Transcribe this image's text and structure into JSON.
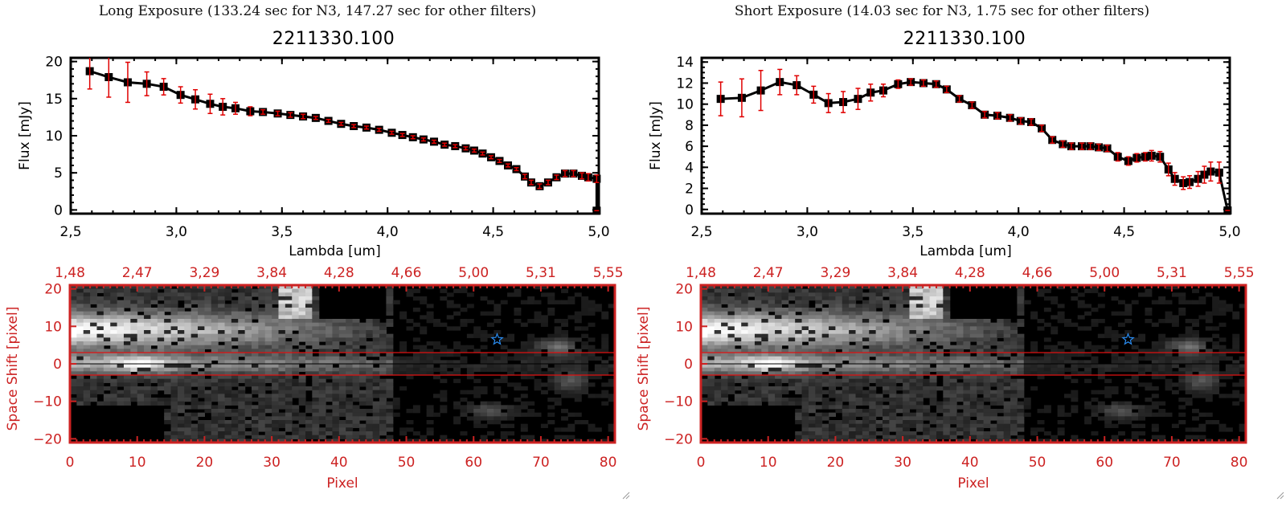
{
  "panels": [
    {
      "exposure_title": "Long Exposure (133.24 sec for N3, 147.27 sec for other filters)",
      "object_id": "2211330.100"
    },
    {
      "exposure_title": "Short Exposure (14.03 sec for N3, 1.75 sec for other filters)",
      "object_id": "2211330.100"
    }
  ],
  "colors": {
    "line": "#000000",
    "errorbar": "#e00000",
    "image_axis": "#cc2222",
    "aperture_line": "#e01010",
    "star_marker": "#2a8cf0"
  },
  "chart_data": [
    {
      "type": "line",
      "title": "2211330.100",
      "xlabel": "Lambda [um]",
      "ylabel": "Flux [mJy]",
      "xlim": [
        2.5,
        5.0
      ],
      "ylim": [
        -0.5,
        20.5
      ],
      "xticks": [
        "2.5",
        "3.0",
        "3.5",
        "4.0",
        "4.5",
        "5.0"
      ],
      "yticks": [
        "0",
        "5",
        "10",
        "15",
        "20"
      ],
      "grid": false,
      "series": [
        {
          "name": "flux",
          "x": [
            2.59,
            2.68,
            2.77,
            2.86,
            2.94,
            3.02,
            3.09,
            3.16,
            3.22,
            3.28,
            3.35,
            3.41,
            3.48,
            3.54,
            3.6,
            3.66,
            3.72,
            3.78,
            3.84,
            3.9,
            3.96,
            4.02,
            4.07,
            4.12,
            4.17,
            4.22,
            4.27,
            4.32,
            4.37,
            4.41,
            4.45,
            4.49,
            4.53,
            4.57,
            4.61,
            4.65,
            4.68,
            4.72,
            4.76,
            4.8,
            4.84,
            4.88,
            4.92,
            4.95,
            4.99
          ],
          "y": [
            18.7,
            17.9,
            17.2,
            17.0,
            16.6,
            15.5,
            14.9,
            14.3,
            13.9,
            13.7,
            13.3,
            13.2,
            13.0,
            12.8,
            12.6,
            12.4,
            12.0,
            11.6,
            11.3,
            11.1,
            10.8,
            10.4,
            10.1,
            9.8,
            9.5,
            9.2,
            8.8,
            8.6,
            8.3,
            8.0,
            7.6,
            7.1,
            6.6,
            6.0,
            5.5,
            4.5,
            3.7,
            3.2,
            3.7,
            4.4,
            4.9,
            4.9,
            4.6,
            4.4,
            4.2
          ],
          "yerr": [
            2.4,
            2.7,
            2.7,
            1.6,
            1.1,
            1.1,
            1.3,
            1.3,
            1.1,
            0.8,
            0.6,
            0.3,
            0.3,
            0.3,
            0.3,
            0.2,
            0.2,
            0.2,
            0.2,
            0.2,
            0.2,
            0.2,
            0.2,
            0.2,
            0.2,
            0.2,
            0.2,
            0.2,
            0.2,
            0.2,
            0.2,
            0.2,
            0.2,
            0.2,
            0.2,
            0.3,
            0.3,
            0.3,
            0.3,
            0.3,
            0.4,
            0.4,
            0.4,
            0.5,
            0.5
          ]
        }
      ],
      "final_point": {
        "x": 4.99,
        "y": -0.1,
        "yerr": 0.1
      },
      "image_panel": {
        "xlabel": "Pixel",
        "ylabel": "Space Shift [pixel]",
        "xlim": [
          0,
          81
        ],
        "ylim": [
          -21,
          21
        ],
        "xticks": [
          "0",
          "10",
          "20",
          "30",
          "40",
          "50",
          "60",
          "70",
          "80"
        ],
        "yticks": [
          "-20",
          "-10",
          "0",
          "10",
          "20"
        ],
        "top_ticks": [
          "1.48",
          "2.47",
          "3.29",
          "3.84",
          "4.28",
          "4.66",
          "5.00",
          "5.31",
          "5.55"
        ],
        "aperture": [
          -3,
          3
        ],
        "star": {
          "x": 63.5,
          "y": 6.5
        }
      }
    },
    {
      "type": "line",
      "title": "2211330.100",
      "xlabel": "Lambda [um]",
      "ylabel": "Flux [mJy]",
      "xlim": [
        2.5,
        5.0
      ],
      "ylim": [
        -0.4,
        14.4
      ],
      "xticks": [
        "2.5",
        "3.0",
        "3.5",
        "4.0",
        "4.5",
        "5.0"
      ],
      "yticks": [
        "0",
        "2",
        "4",
        "6",
        "8",
        "10",
        "12",
        "14"
      ],
      "grid": false,
      "series": [
        {
          "name": "flux",
          "x": [
            2.59,
            2.69,
            2.78,
            2.87,
            2.95,
            3.03,
            3.1,
            3.17,
            3.24,
            3.3,
            3.36,
            3.43,
            3.49,
            3.55,
            3.61,
            3.66,
            3.72,
            3.78,
            3.84,
            3.9,
            3.96,
            4.01,
            4.06,
            4.11,
            4.16,
            4.21,
            4.25,
            4.3,
            4.34,
            4.38,
            4.42,
            4.47,
            4.52,
            4.56,
            4.6,
            4.63,
            4.67,
            4.71,
            4.74,
            4.78,
            4.81,
            4.85,
            4.88,
            4.91,
            4.95
          ],
          "y": [
            10.5,
            10.6,
            11.3,
            12.1,
            11.8,
            10.9,
            10.1,
            10.2,
            10.5,
            11.1,
            11.3,
            11.9,
            12.1,
            12.0,
            11.9,
            11.4,
            10.5,
            9.9,
            9.0,
            8.9,
            8.7,
            8.4,
            8.3,
            7.7,
            6.6,
            6.2,
            6.0,
            6.0,
            6.0,
            5.9,
            5.8,
            5.0,
            4.6,
            4.9,
            5.0,
            5.1,
            5.0,
            3.8,
            2.9,
            2.5,
            2.6,
            2.9,
            3.3,
            3.6,
            3.5
          ],
          "yerr": [
            1.6,
            1.8,
            1.9,
            1.2,
            0.9,
            0.8,
            0.9,
            1.0,
            1.0,
            0.8,
            0.6,
            0.4,
            0.3,
            0.3,
            0.3,
            0.3,
            0.3,
            0.3,
            0.3,
            0.3,
            0.3,
            0.3,
            0.3,
            0.3,
            0.3,
            0.3,
            0.3,
            0.3,
            0.3,
            0.3,
            0.3,
            0.4,
            0.4,
            0.4,
            0.4,
            0.5,
            0.5,
            0.6,
            0.6,
            0.6,
            0.6,
            0.7,
            0.8,
            0.9,
            1.0
          ]
        }
      ],
      "final_point": {
        "x": 4.99,
        "y": -0.1,
        "yerr": 0.1
      },
      "image_panel": {
        "xlabel": "Pixel",
        "ylabel": "Space Shift [pixel]",
        "xlim": [
          0,
          81
        ],
        "ylim": [
          -21,
          21
        ],
        "xticks": [
          "0",
          "10",
          "20",
          "30",
          "40",
          "50",
          "60",
          "70",
          "80"
        ],
        "yticks": [
          "-20",
          "-10",
          "0",
          "10",
          "20"
        ],
        "top_ticks": [
          "1.48",
          "2.47",
          "3.29",
          "3.84",
          "4.28",
          "4.66",
          "5.00",
          "5.31",
          "5.55"
        ],
        "aperture": [
          -3,
          3
        ],
        "star": {
          "x": 63.5,
          "y": 6.5
        }
      }
    }
  ]
}
